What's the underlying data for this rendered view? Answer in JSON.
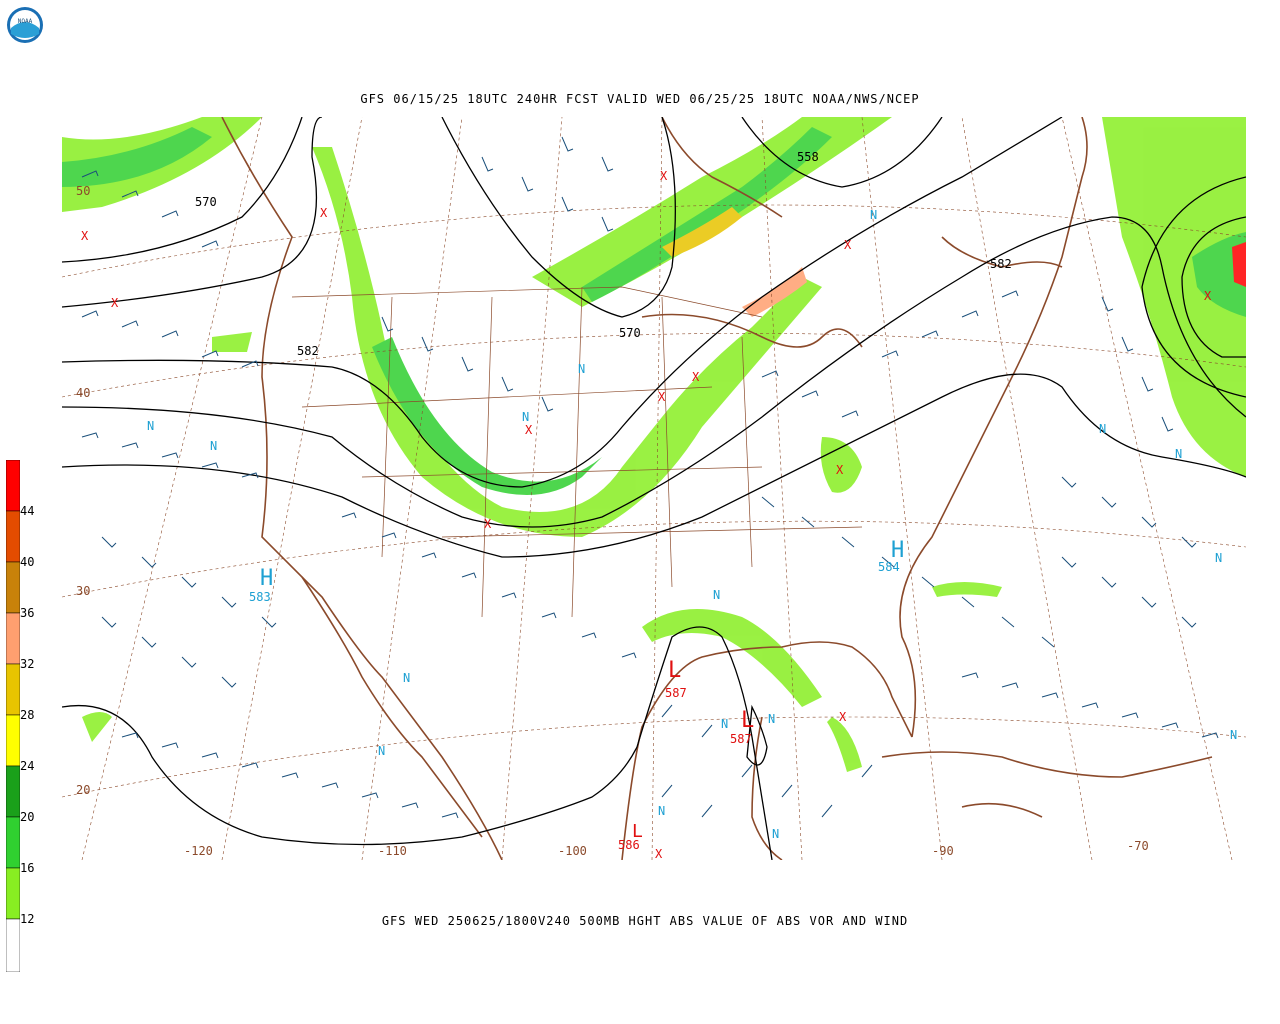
{
  "header": {
    "logo_text": "NOAA",
    "title": "GFS 06/15/25 18UTC 240HR FCST VALID WED 06/25/25 18UTC NOAA/NWS/NCEP"
  },
  "footer": {
    "subtitle": "GFS WED 250625/1800V240 500MB HGHT ABS VALUE OF ABS VOR AND WIND"
  },
  "colorbar": {
    "labels": [
      "44",
      "40",
      "36",
      "32",
      "28",
      "24",
      "20",
      "16",
      "12"
    ],
    "colors": [
      "#ff0000",
      "#e44c00",
      "#c8820a",
      "#ff9f6f",
      "#e8c400",
      "#ffff00",
      "#1aa01a",
      "#30d030",
      "#88ee22",
      "#ffffff"
    ]
  },
  "map": {
    "contour_labels": [
      "570",
      "558",
      "582",
      "582",
      "570"
    ],
    "lat_labels": [
      "50",
      "40",
      "30",
      "20"
    ],
    "lon_labels": [
      "-120",
      "-110",
      "-100",
      "-90",
      "-70"
    ],
    "highs": [
      {
        "label": "583"
      },
      {
        "label": "584"
      }
    ],
    "lows": [
      {
        "label": "587"
      },
      {
        "label": "587"
      },
      {
        "label": "586"
      }
    ],
    "high_symbol": "H",
    "low_symbol": "L",
    "n_symbol": "N",
    "x_symbol": "X",
    "colors": {
      "contour": "#000000",
      "coast": "#8b4a2b",
      "wind": "#1a4f7a",
      "high": "#1ea0d2",
      "low": "#e01010",
      "grid": "#8b4a2b"
    }
  }
}
